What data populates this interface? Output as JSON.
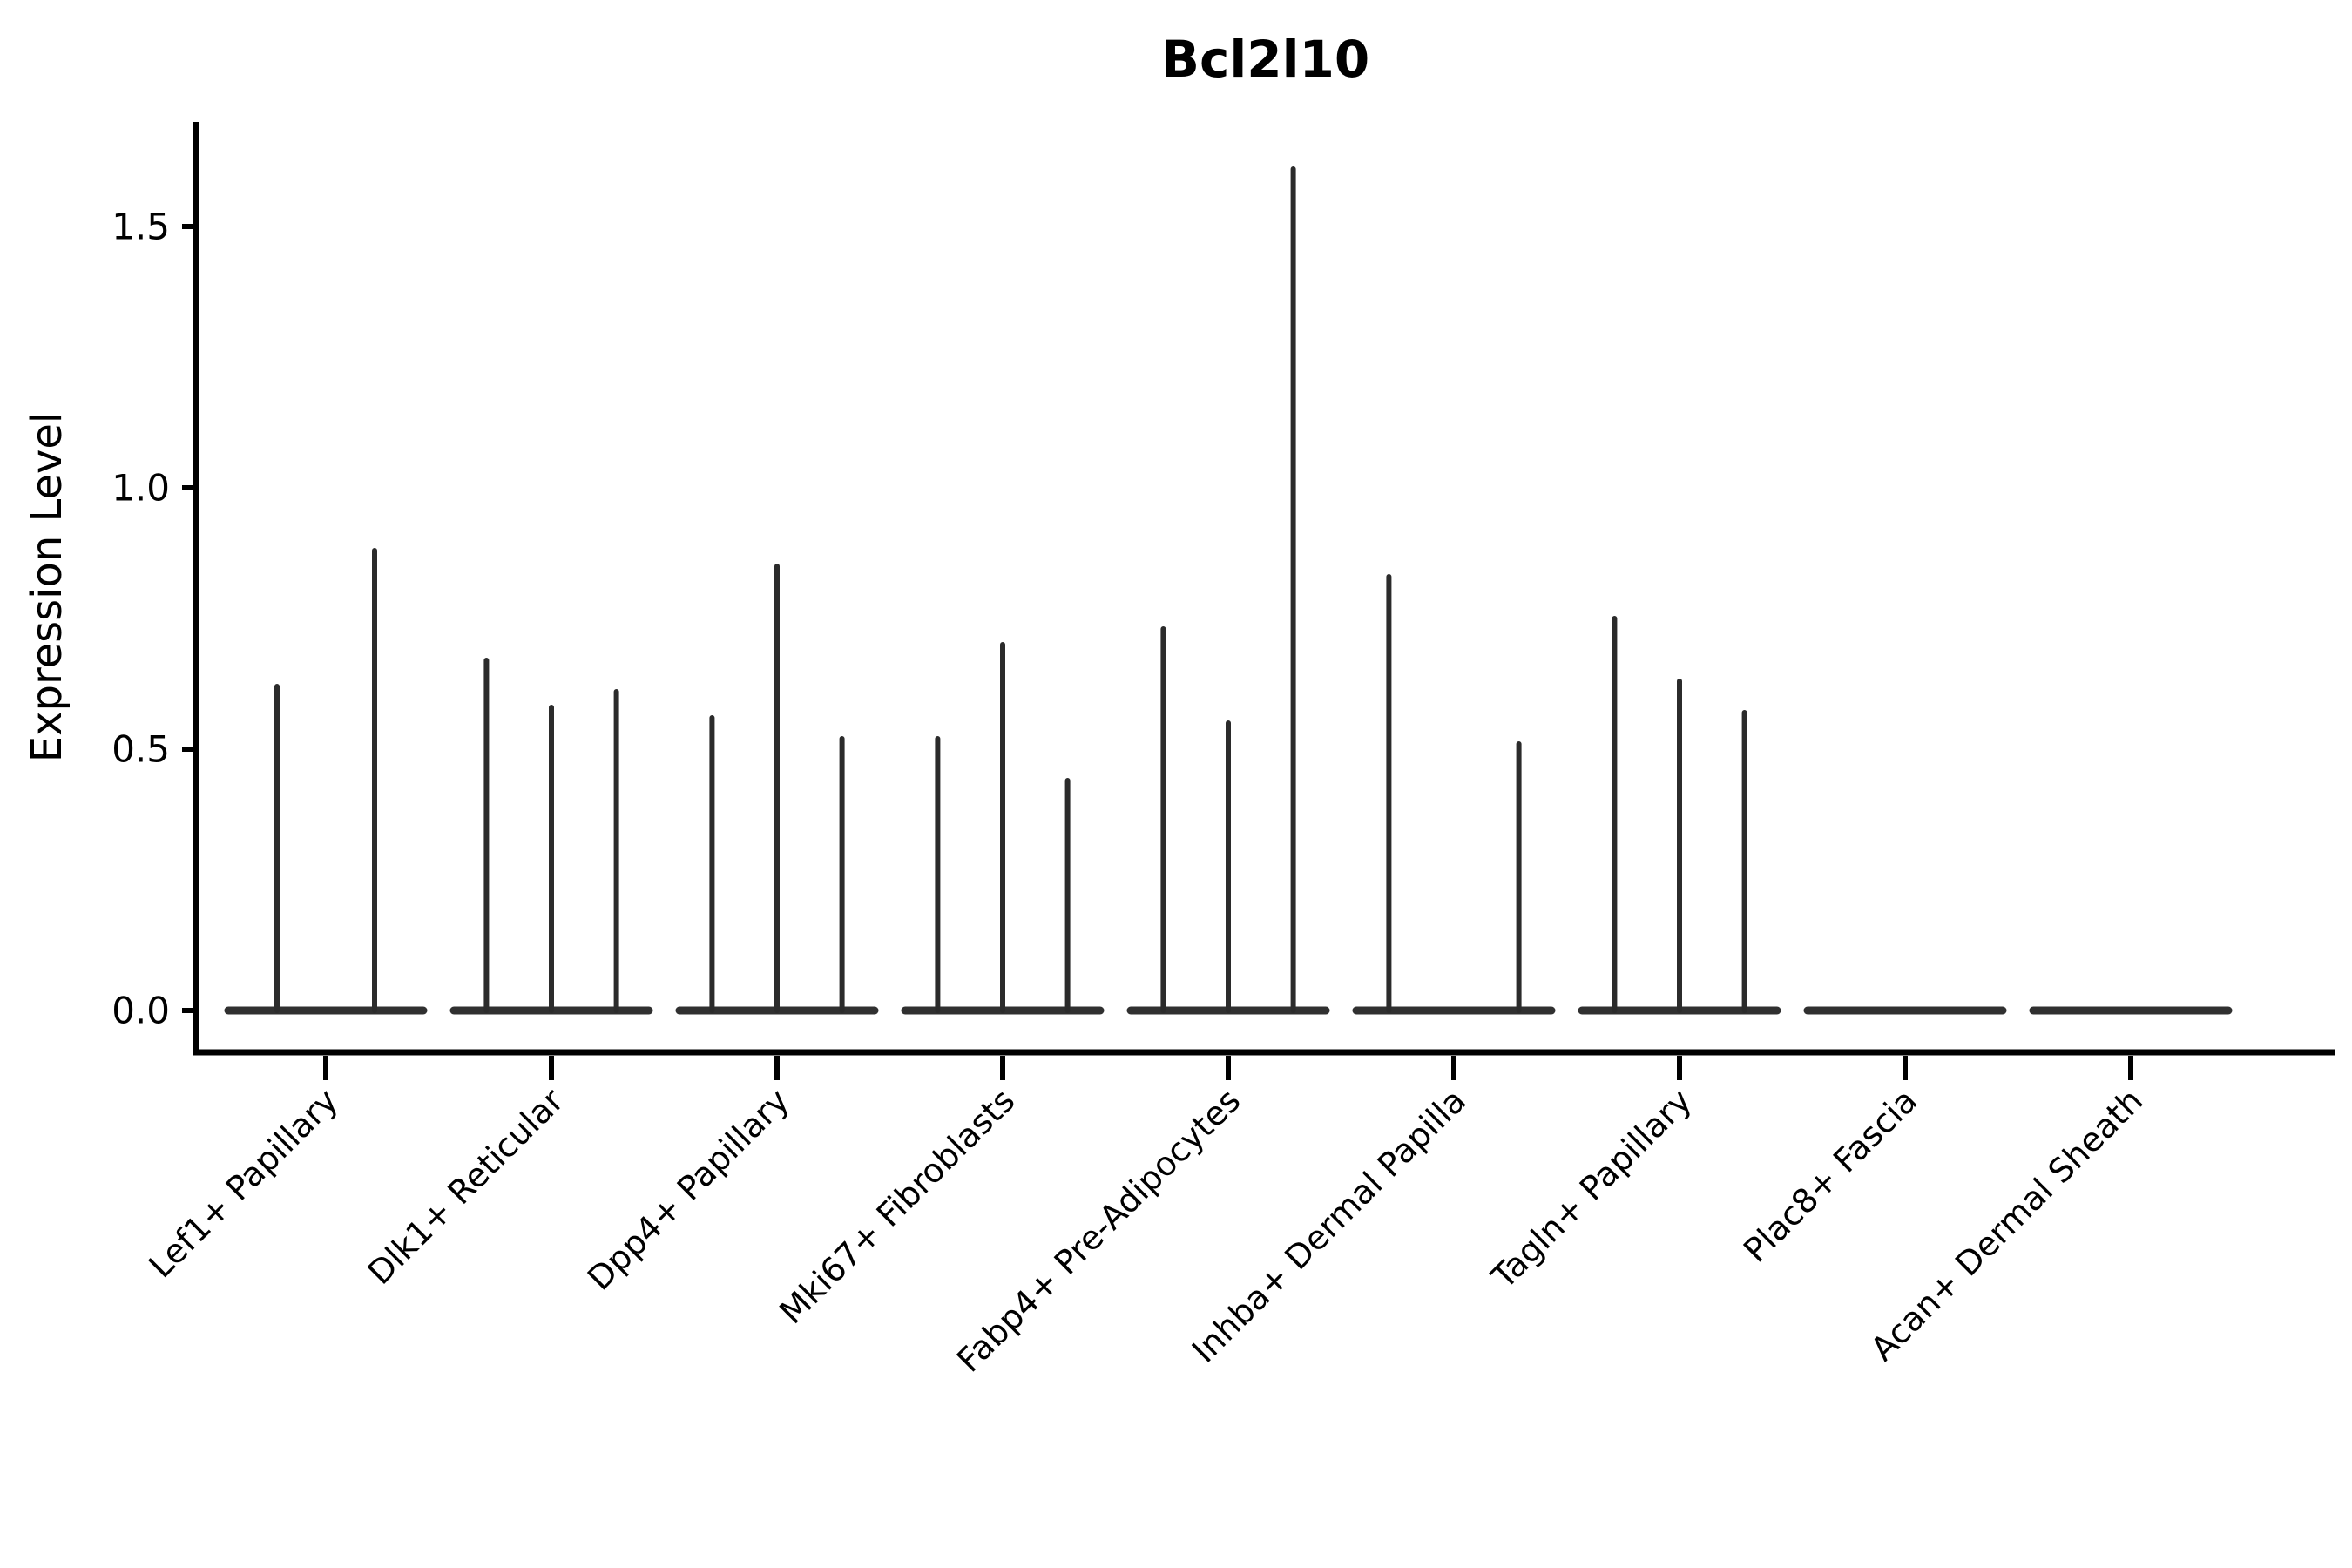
{
  "figure": {
    "background": "#ffffff"
  },
  "axes": {
    "ylabel": "Expression Level",
    "xlabel": "",
    "ytick_labels": [
      "0.0",
      "0.5",
      "1.0",
      "1.5"
    ],
    "spine_color": "#000000"
  },
  "chart_data": {
    "type": "violin",
    "title": "Bcl2l10",
    "xlabel": "",
    "ylabel": "Expression Level",
    "categories": [
      "Lef1+ Papillary",
      "Dlk1+ Reticular",
      "Dpp4+ Papillary",
      "Mki67+ Fibroblasts",
      "Fabp4+ Pre-Adipocytes",
      "Inhba+ Dermal Papilla",
      "Tagln+ Papillary",
      "Plac8+ Fascia",
      "Acan+ Dermal Sheath"
    ],
    "yticks": [
      0.0,
      0.5,
      1.0,
      1.5
    ],
    "ylim": [
      -0.08,
      1.7
    ],
    "violin_color": "#2b2b2b",
    "baseline_color": "#303030",
    "groups": [
      {
        "category": "Lef1+ Papillary",
        "violins": [
          {
            "position": 0.25,
            "peak": 0.62
          },
          {
            "position": 0.75,
            "peak": 0.88
          }
        ]
      },
      {
        "category": "Dlk1+ Reticular",
        "violins": [
          {
            "position": 0.167,
            "peak": 0.67
          },
          {
            "position": 0.5,
            "peak": 0.58
          },
          {
            "position": 0.833,
            "peak": 0.61
          }
        ]
      },
      {
        "category": "Dpp4+ Papillary",
        "violins": [
          {
            "position": 0.167,
            "peak": 0.56
          },
          {
            "position": 0.5,
            "peak": 0.85
          },
          {
            "position": 0.833,
            "peak": 0.52
          }
        ]
      },
      {
        "category": "Mki67+ Fibroblasts",
        "violins": [
          {
            "position": 0.167,
            "peak": 0.52
          },
          {
            "position": 0.5,
            "peak": 0.7
          },
          {
            "position": 0.833,
            "peak": 0.44
          }
        ]
      },
      {
        "category": "Fabp4+ Pre-Adipocytes",
        "violins": [
          {
            "position": 0.167,
            "peak": 0.73
          },
          {
            "position": 0.5,
            "peak": 0.55
          },
          {
            "position": 0.833,
            "peak": 1.61
          }
        ]
      },
      {
        "category": "Inhba+ Dermal Papilla",
        "violins": [
          {
            "position": 0.167,
            "peak": 0.83
          },
          {
            "position": 0.833,
            "peak": 0.51
          }
        ]
      },
      {
        "category": "Tagln+ Papillary",
        "violins": [
          {
            "position": 0.167,
            "peak": 0.75
          },
          {
            "position": 0.5,
            "peak": 0.63
          },
          {
            "position": 0.833,
            "peak": 0.57
          }
        ]
      },
      {
        "category": "Plac8+ Fascia",
        "violins": []
      },
      {
        "category": "Acan+ Dermal Sheath",
        "violins": []
      }
    ],
    "layout_hints": {
      "legend": "none",
      "grid": false,
      "x_label_rotation_deg": 45,
      "violin_style": "near-zero-width density spikes with flat baseline at expression 0",
      "spines": [
        "left",
        "bottom"
      ]
    }
  }
}
